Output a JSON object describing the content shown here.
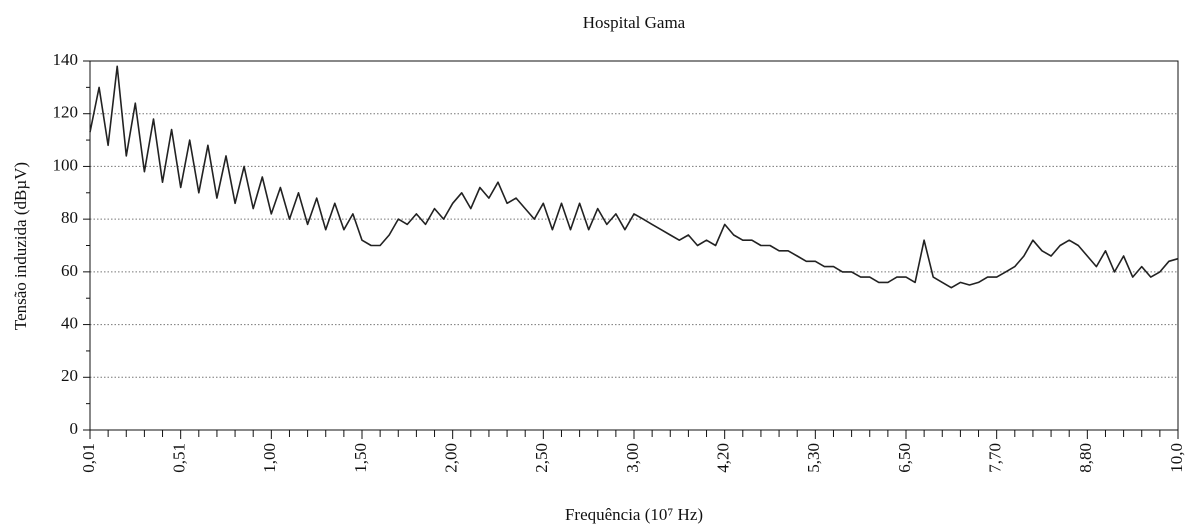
{
  "chart_data": {
    "type": "line",
    "title": "Hospital Gama",
    "x_label": "Frequência (10⁷ Hz)",
    "y_label": "Tensão induzida (dBµV)",
    "xlim": [
      0,
      12
    ],
    "ylim": [
      0,
      140
    ],
    "xticks": [
      {
        "value": 0,
        "label": "0,01"
      },
      {
        "value": 1,
        "label": "0,51"
      },
      {
        "value": 2,
        "label": "1,00"
      },
      {
        "value": 3,
        "label": "1,50"
      },
      {
        "value": 4,
        "label": "2,00"
      },
      {
        "value": 5,
        "label": "2,50"
      },
      {
        "value": 6,
        "label": "3,00"
      },
      {
        "value": 7,
        "label": "4,20"
      },
      {
        "value": 8,
        "label": "5,30"
      },
      {
        "value": 9,
        "label": "6,50"
      },
      {
        "value": 10,
        "label": "7,70"
      },
      {
        "value": 11,
        "label": "8,80"
      },
      {
        "value": 12,
        "label": "10,0"
      }
    ],
    "yticks": [
      0,
      20,
      40,
      60,
      80,
      100,
      120,
      140
    ],
    "grid": true,
    "color": "#222222",
    "x": [
      0,
      0.1,
      0.2,
      0.3,
      0.4,
      0.5,
      0.6,
      0.7,
      0.8,
      0.9,
      1,
      1.1,
      1.2,
      1.3,
      1.4,
      1.5,
      1.6,
      1.7,
      1.8,
      1.9,
      2,
      2.1,
      2.2,
      2.3,
      2.4,
      2.5,
      2.6,
      2.7,
      2.8,
      2.9,
      3,
      3.1,
      3.2,
      3.3,
      3.4,
      3.5,
      3.6,
      3.7,
      3.8,
      3.9,
      4,
      4.1,
      4.2,
      4.3,
      4.4,
      4.5,
      4.6,
      4.7,
      4.8,
      4.9,
      5,
      5.1,
      5.2,
      5.3,
      5.4,
      5.5,
      5.6,
      5.7,
      5.8,
      5.9,
      6,
      6.1,
      6.2,
      6.3,
      6.4,
      6.5,
      6.6,
      6.7,
      6.8,
      6.9,
      7,
      7.1,
      7.2,
      7.3,
      7.4,
      7.5,
      7.6,
      7.7,
      7.8,
      7.9,
      8,
      8.1,
      8.2,
      8.3,
      8.4,
      8.5,
      8.6,
      8.7,
      8.8,
      8.9,
      9,
      9.1,
      9.2,
      9.3,
      9.4,
      9.5,
      9.6,
      9.7,
      9.8,
      9.9,
      10,
      10.1,
      10.2,
      10.3,
      10.4,
      10.5,
      10.6,
      10.7,
      10.8,
      10.9,
      11,
      11.1,
      11.2,
      11.3,
      11.4,
      11.5,
      11.6,
      11.7,
      11.8,
      11.9,
      12
    ],
    "values": [
      113,
      130,
      108,
      138,
      104,
      124,
      98,
      118,
      94,
      114,
      92,
      110,
      90,
      108,
      88,
      104,
      86,
      100,
      84,
      96,
      82,
      92,
      80,
      90,
      78,
      88,
      76,
      86,
      76,
      82,
      72,
      70,
      70,
      74,
      80,
      78,
      82,
      78,
      84,
      80,
      86,
      90,
      84,
      92,
      88,
      94,
      86,
      88,
      84,
      80,
      86,
      76,
      86,
      76,
      86,
      76,
      84,
      78,
      82,
      76,
      82,
      80,
      78,
      76,
      74,
      72,
      74,
      70,
      72,
      70,
      78,
      74,
      72,
      72,
      70,
      70,
      68,
      68,
      66,
      64,
      64,
      62,
      62,
      60,
      60,
      58,
      58,
      56,
      56,
      58,
      58,
      56,
      72,
      58,
      56,
      54,
      56,
      55,
      56,
      58,
      58,
      60,
      62,
      66,
      72,
      68,
      66,
      70,
      72,
      70,
      66,
      62,
      68,
      60,
      66,
      58,
      62,
      58,
      60,
      64,
      65
    ]
  }
}
